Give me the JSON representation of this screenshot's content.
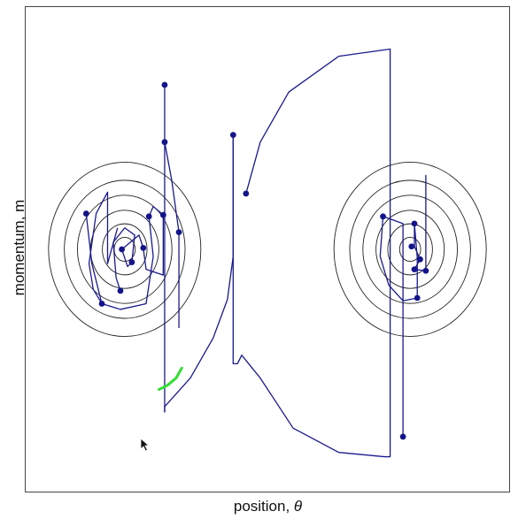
{
  "chart_data": {
    "type": "phase-portrait",
    "xlabel": "position, θ",
    "ylabel": "momentum, m",
    "colors": {
      "contour": "#222222",
      "trajectory": "#1a1a8c",
      "sample_point": "#14148a",
      "current_step": "#33dd33",
      "frame": "#444444"
    },
    "contour_sets": [
      {
        "center": [
          -1.0,
          0.0
        ],
        "radii": [
          0.08,
          0.17,
          0.26,
          0.36,
          0.46,
          0.58
        ]
      },
      {
        "center": [
          1.0,
          0.0
        ],
        "radii": [
          0.08,
          0.17,
          0.26,
          0.36,
          0.46,
          0.58
        ]
      }
    ],
    "x_range": [
      -1.7,
      1.7
    ],
    "y_range": [
      -1.7,
      1.7
    ],
    "sample_points": [
      [
        -0.72,
        1.15
      ],
      [
        -0.72,
        0.75
      ],
      [
        -1.27,
        0.25
      ],
      [
        -0.83,
        0.23
      ],
      [
        -0.73,
        0.24
      ],
      [
        -0.62,
        0.12
      ],
      [
        -1.02,
        0.0
      ],
      [
        -0.87,
        0.01
      ],
      [
        -0.95,
        -0.09
      ],
      [
        -1.03,
        -0.29
      ],
      [
        -1.16,
        -0.38
      ],
      [
        -0.24,
        0.8
      ],
      [
        -0.15,
        0.39
      ],
      [
        1.03,
        0.18
      ],
      [
        0.81,
        0.23
      ],
      [
        1.01,
        0.02
      ],
      [
        1.07,
        -0.07
      ],
      [
        1.03,
        -0.14
      ],
      [
        1.11,
        -0.15
      ],
      [
        1.05,
        -0.34
      ],
      [
        0.95,
        -1.31
      ]
    ],
    "trajectories": [
      [
        [
          -0.72,
          1.15
        ],
        [
          -0.72,
          -1.14
        ]
      ],
      [
        [
          -0.72,
          -1.14
        ],
        [
          -0.72,
          -1.1
        ],
        [
          -0.54,
          -0.9
        ],
        [
          -0.38,
          -0.62
        ],
        [
          -0.28,
          -0.35
        ],
        [
          -0.24,
          -0.05
        ],
        [
          -0.24,
          0.8
        ]
      ],
      [
        [
          -0.72,
          0.75
        ],
        [
          -0.67,
          0.48
        ],
        [
          -0.62,
          0.12
        ],
        [
          -0.62,
          -0.55
        ]
      ],
      [
        [
          -1.27,
          0.25
        ],
        [
          -1.23,
          -0.1
        ],
        [
          -1.16,
          -0.38
        ],
        [
          -1.03,
          -0.42
        ],
        [
          -0.85,
          -0.38
        ],
        [
          -0.8,
          -0.05
        ],
        [
          -0.83,
          0.23
        ],
        [
          -0.8,
          0.3
        ],
        [
          -0.73,
          0.24
        ],
        [
          -0.73,
          -0.18
        ],
        [
          -0.85,
          -0.14
        ],
        [
          -0.87,
          0.01
        ]
      ],
      [
        [
          -0.87,
          0.01
        ],
        [
          -0.9,
          0.1
        ],
        [
          -1.02,
          0.0
        ],
        [
          -0.98,
          -0.12
        ],
        [
          -0.95,
          -0.09
        ]
      ],
      [
        [
          -0.95,
          -0.09
        ],
        [
          -0.93,
          0.1
        ],
        [
          -1.0,
          0.15
        ],
        [
          -1.08,
          0.05
        ],
        [
          -1.06,
          -0.2
        ],
        [
          -1.03,
          -0.29
        ]
      ],
      [
        [
          -1.16,
          -0.38
        ],
        [
          -1.22,
          -0.28
        ],
        [
          -1.25,
          -0.1
        ],
        [
          -1.2,
          0.25
        ],
        [
          -1.12,
          0.4
        ],
        [
          -1.12,
          -0.1
        ],
        [
          -1.05,
          0.15
        ]
      ],
      [
        [
          -0.24,
          0.8
        ],
        [
          -0.24,
          -0.8
        ],
        [
          -0.21,
          -0.8
        ],
        [
          -0.18,
          -0.74
        ],
        [
          -0.05,
          -0.9
        ],
        [
          0.18,
          -1.25
        ],
        [
          0.5,
          -1.42
        ],
        [
          0.82,
          -1.45
        ],
        [
          0.86,
          -1.45
        ],
        [
          0.86,
          1.4
        ],
        [
          0.5,
          1.35
        ],
        [
          0.15,
          1.1
        ],
        [
          -0.05,
          0.75
        ],
        [
          -0.15,
          0.39
        ]
      ],
      [
        [
          0.95,
          -1.31
        ],
        [
          0.95,
          0.18
        ],
        [
          0.81,
          0.23
        ],
        [
          0.79,
          -0.05
        ],
        [
          0.85,
          -0.25
        ],
        [
          0.95,
          -0.36
        ],
        [
          1.05,
          -0.34
        ],
        [
          1.05,
          -0.06
        ],
        [
          1.03,
          0.18
        ],
        [
          1.03,
          0.02
        ],
        [
          1.07,
          -0.07
        ],
        [
          1.03,
          -0.14
        ],
        [
          1.11,
          -0.15
        ],
        [
          1.11,
          0.52
        ]
      ]
    ],
    "current_step": [
      [
        -0.76,
        -0.98
      ],
      [
        -0.7,
        -0.95
      ],
      [
        -0.64,
        -0.9
      ],
      [
        -0.6,
        -0.83
      ]
    ]
  }
}
